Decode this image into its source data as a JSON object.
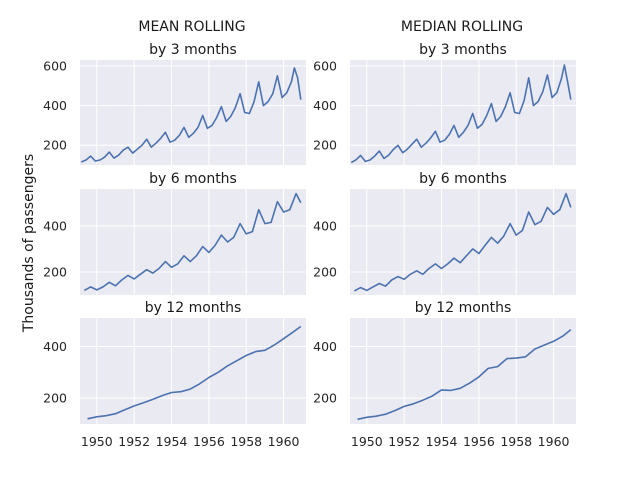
{
  "figure": {
    "ylabel": "Thousands of passengers",
    "col_titles": [
      "MEAN ROLLING",
      "MEDIAN ROLLING"
    ],
    "row_titles": [
      "by 3 months",
      "by 6 months",
      "by 12 months"
    ],
    "line_color": "#4c72b0",
    "panel_bg": "#eaeaf2",
    "grid_color": "#ffffff"
  },
  "chart_data": [
    {
      "type": "line",
      "title": "by 3 months",
      "group": "MEAN ROLLING",
      "xlim": [
        1949.1,
        1961.2
      ],
      "ylim": [
        100,
        630
      ],
      "yticks": [
        200,
        400,
        600
      ],
      "xticks": [],
      "series": [
        {
          "x": [
            1949.17,
            1949.42,
            1949.67,
            1949.92,
            1950.17,
            1950.42,
            1950.67,
            1950.92,
            1951.17,
            1951.42,
            1951.67,
            1951.92,
            1952.17,
            1952.42,
            1952.67,
            1952.92,
            1953.17,
            1953.42,
            1953.67,
            1953.92,
            1954.17,
            1954.42,
            1954.67,
            1954.92,
            1955.17,
            1955.42,
            1955.67,
            1955.92,
            1956.17,
            1956.42,
            1956.67,
            1956.92,
            1957.17,
            1957.42,
            1957.67,
            1957.92,
            1958.17,
            1958.42,
            1958.67,
            1958.92,
            1959.17,
            1959.42,
            1959.67,
            1959.92,
            1960.17,
            1960.42,
            1960.58,
            1960.75,
            1960.92
          ],
          "values": [
            115,
            125,
            145,
            120,
            125,
            140,
            165,
            135,
            150,
            175,
            190,
            160,
            180,
            200,
            230,
            190,
            210,
            235,
            265,
            215,
            225,
            250,
            290,
            240,
            260,
            290,
            350,
            285,
            300,
            340,
            395,
            320,
            345,
            390,
            460,
            365,
            360,
            420,
            520,
            400,
            420,
            460,
            550,
            440,
            465,
            520,
            590,
            540,
            430
          ]
        }
      ]
    },
    {
      "type": "line",
      "title": "by 3 months",
      "group": "MEDIAN ROLLING",
      "xlim": [
        1949.1,
        1961.2
      ],
      "ylim": [
        100,
        630
      ],
      "yticks": [
        200,
        400,
        600
      ],
      "xticks": [],
      "series": [
        {
          "x": [
            1949.17,
            1949.42,
            1949.67,
            1949.92,
            1950.17,
            1950.42,
            1950.67,
            1950.92,
            1951.17,
            1951.42,
            1951.67,
            1951.92,
            1952.17,
            1952.42,
            1952.67,
            1952.92,
            1953.17,
            1953.42,
            1953.67,
            1953.92,
            1954.17,
            1954.42,
            1954.67,
            1954.92,
            1955.17,
            1955.42,
            1955.67,
            1955.92,
            1956.17,
            1956.42,
            1956.67,
            1956.92,
            1957.17,
            1957.42,
            1957.67,
            1957.92,
            1958.17,
            1958.42,
            1958.67,
            1958.92,
            1959.17,
            1959.42,
            1959.67,
            1959.92,
            1960.17,
            1960.42,
            1960.58,
            1960.75,
            1960.92
          ],
          "values": [
            112,
            126,
            148,
            118,
            125,
            145,
            170,
            133,
            150,
            178,
            199,
            162,
            180,
            205,
            230,
            190,
            210,
            237,
            270,
            215,
            225,
            255,
            300,
            240,
            265,
            300,
            360,
            285,
            305,
            350,
            410,
            320,
            345,
            395,
            465,
            365,
            360,
            425,
            540,
            400,
            420,
            470,
            555,
            440,
            465,
            535,
            605,
            520,
            430
          ]
        }
      ]
    },
    {
      "type": "line",
      "title": "by 6 months",
      "group": "MEAN ROLLING",
      "xlim": [
        1949.1,
        1961.2
      ],
      "ylim": [
        100,
        560
      ],
      "yticks": [
        200,
        400
      ],
      "xticks": [],
      "series": [
        {
          "x": [
            1949.33,
            1949.67,
            1950.0,
            1950.33,
            1950.67,
            1951.0,
            1951.33,
            1951.67,
            1952.0,
            1952.33,
            1952.67,
            1953.0,
            1953.33,
            1953.67,
            1954.0,
            1954.33,
            1954.67,
            1955.0,
            1955.33,
            1955.67,
            1956.0,
            1956.33,
            1956.67,
            1957.0,
            1957.33,
            1957.67,
            1958.0,
            1958.33,
            1958.67,
            1959.0,
            1959.33,
            1959.67,
            1960.0,
            1960.33,
            1960.67,
            1960.92
          ],
          "values": [
            120,
            135,
            122,
            135,
            155,
            140,
            165,
            185,
            170,
            190,
            210,
            195,
            215,
            245,
            220,
            235,
            270,
            245,
            270,
            310,
            285,
            315,
            360,
            330,
            350,
            410,
            365,
            375,
            470,
            410,
            415,
            505,
            460,
            470,
            540,
            500
          ]
        }
      ]
    },
    {
      "type": "line",
      "title": "by 6 months",
      "group": "MEDIAN ROLLING",
      "xlim": [
        1949.1,
        1961.2
      ],
      "ylim": [
        100,
        560
      ],
      "yticks": [
        200,
        400
      ],
      "xticks": [],
      "series": [
        {
          "x": [
            1949.33,
            1949.67,
            1950.0,
            1950.33,
            1950.67,
            1951.0,
            1951.33,
            1951.67,
            1952.0,
            1952.33,
            1952.67,
            1953.0,
            1953.33,
            1953.67,
            1954.0,
            1954.33,
            1954.67,
            1955.0,
            1955.33,
            1955.67,
            1956.0,
            1956.33,
            1956.67,
            1957.0,
            1957.33,
            1957.67,
            1958.0,
            1958.33,
            1958.67,
            1959.0,
            1959.33,
            1959.67,
            1960.0,
            1960.33,
            1960.67,
            1960.92
          ],
          "values": [
            118,
            132,
            120,
            135,
            150,
            138,
            165,
            180,
            168,
            190,
            205,
            190,
            215,
            235,
            215,
            235,
            260,
            240,
            270,
            300,
            280,
            315,
            350,
            325,
            355,
            410,
            360,
            380,
            460,
            405,
            420,
            480,
            450,
            470,
            540,
            480
          ]
        }
      ]
    },
    {
      "type": "line",
      "title": "by 12 months",
      "group": "MEAN ROLLING",
      "xlim": [
        1949.1,
        1961.2
      ],
      "ylim": [
        100,
        510
      ],
      "yticks": [
        200,
        400
      ],
      "xticks": [
        1950,
        1952,
        1954,
        1956,
        1958,
        1960
      ],
      "series": [
        {
          "x": [
            1949.5,
            1950.0,
            1950.5,
            1951.0,
            1951.5,
            1952.0,
            1952.5,
            1953.0,
            1953.5,
            1954.0,
            1954.5,
            1955.0,
            1955.5,
            1956.0,
            1956.5,
            1957.0,
            1957.5,
            1958.0,
            1958.5,
            1959.0,
            1959.5,
            1960.0,
            1960.5,
            1960.92
          ],
          "values": [
            120,
            128,
            132,
            140,
            155,
            170,
            182,
            195,
            210,
            222,
            225,
            235,
            255,
            280,
            300,
            325,
            345,
            365,
            380,
            385,
            405,
            430,
            455,
            477
          ]
        }
      ]
    },
    {
      "type": "line",
      "title": "by 12 months",
      "group": "MEDIAN ROLLING",
      "xlim": [
        1949.1,
        1961.2
      ],
      "ylim": [
        100,
        510
      ],
      "yticks": [
        200,
        400
      ],
      "xticks": [
        1950,
        1952,
        1954,
        1956,
        1958,
        1960
      ],
      "series": [
        {
          "x": [
            1949.5,
            1950.0,
            1950.5,
            1951.0,
            1951.5,
            1952.0,
            1952.5,
            1953.0,
            1953.5,
            1954.0,
            1954.5,
            1955.0,
            1955.5,
            1956.0,
            1956.5,
            1957.0,
            1957.5,
            1958.0,
            1958.5,
            1959.0,
            1959.5,
            1960.0,
            1960.5,
            1960.92
          ],
          "values": [
            118,
            126,
            130,
            138,
            152,
            168,
            178,
            192,
            208,
            232,
            230,
            238,
            258,
            282,
            315,
            322,
            353,
            355,
            360,
            390,
            405,
            420,
            440,
            465
          ]
        }
      ]
    }
  ]
}
